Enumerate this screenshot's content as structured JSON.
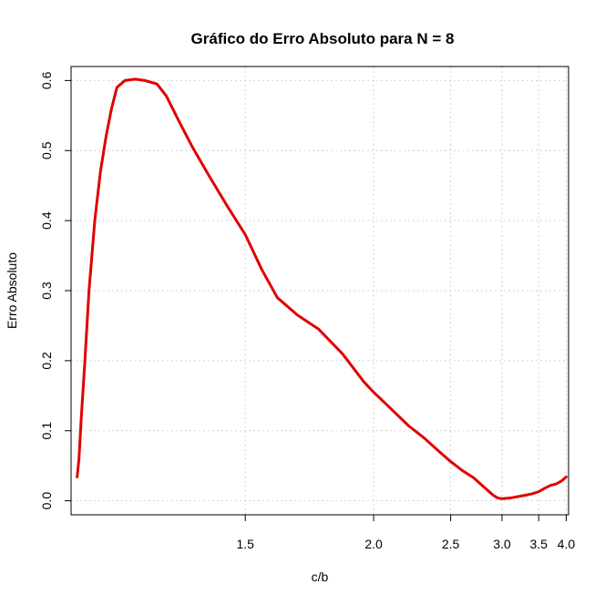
{
  "chart_data": {
    "type": "line",
    "title": "Gráfico do Erro Absoluto para N = 8",
    "xlabel": "c/b",
    "ylabel": "Erro Absoluto",
    "x_scale": "reciprocal",
    "xlim": [
      1.12,
      4.05
    ],
    "ylim": [
      -0.02,
      0.62
    ],
    "x_ticks": [
      1.5,
      2.0,
      2.5,
      3.0,
      3.5,
      4.0
    ],
    "x_tick_labels": [
      "1.5",
      "2.0",
      "2.5",
      "3.0",
      "3.5",
      "4.0"
    ],
    "y_ticks": [
      0.0,
      0.1,
      0.2,
      0.3,
      0.4,
      0.5,
      0.6
    ],
    "y_tick_labels": [
      "0.0",
      "0.1",
      "0.2",
      "0.3",
      "0.4",
      "0.5",
      "0.6"
    ],
    "grid": true,
    "line_color": "#e00000",
    "grid_color": "#d3d3d3",
    "series": [
      {
        "x": [
          1.13,
          1.133,
          1.137,
          1.143,
          1.15,
          1.16,
          1.17,
          1.18,
          1.19,
          1.2,
          1.215,
          1.235,
          1.255,
          1.28,
          1.3,
          1.33,
          1.36,
          1.4,
          1.45,
          1.5,
          1.55,
          1.6,
          1.67,
          1.75,
          1.85,
          1.95,
          2.0,
          2.1,
          2.2,
          2.3,
          2.4,
          2.5,
          2.6,
          2.7,
          2.8,
          2.9,
          2.95,
          3.0,
          3.1,
          3.2,
          3.3,
          3.4,
          3.5,
          3.6,
          3.7,
          3.8,
          3.9,
          4.0
        ],
        "y": [
          0.034,
          0.06,
          0.12,
          0.2,
          0.3,
          0.4,
          0.47,
          0.52,
          0.56,
          0.59,
          0.6,
          0.602,
          0.6,
          0.595,
          0.578,
          0.54,
          0.505,
          0.465,
          0.42,
          0.38,
          0.33,
          0.29,
          0.265,
          0.245,
          0.21,
          0.17,
          0.155,
          0.13,
          0.107,
          0.09,
          0.072,
          0.056,
          0.043,
          0.033,
          0.02,
          0.008,
          0.004,
          0.003,
          0.004,
          0.006,
          0.008,
          0.01,
          0.013,
          0.018,
          0.022,
          0.024,
          0.028,
          0.034
        ]
      }
    ]
  }
}
